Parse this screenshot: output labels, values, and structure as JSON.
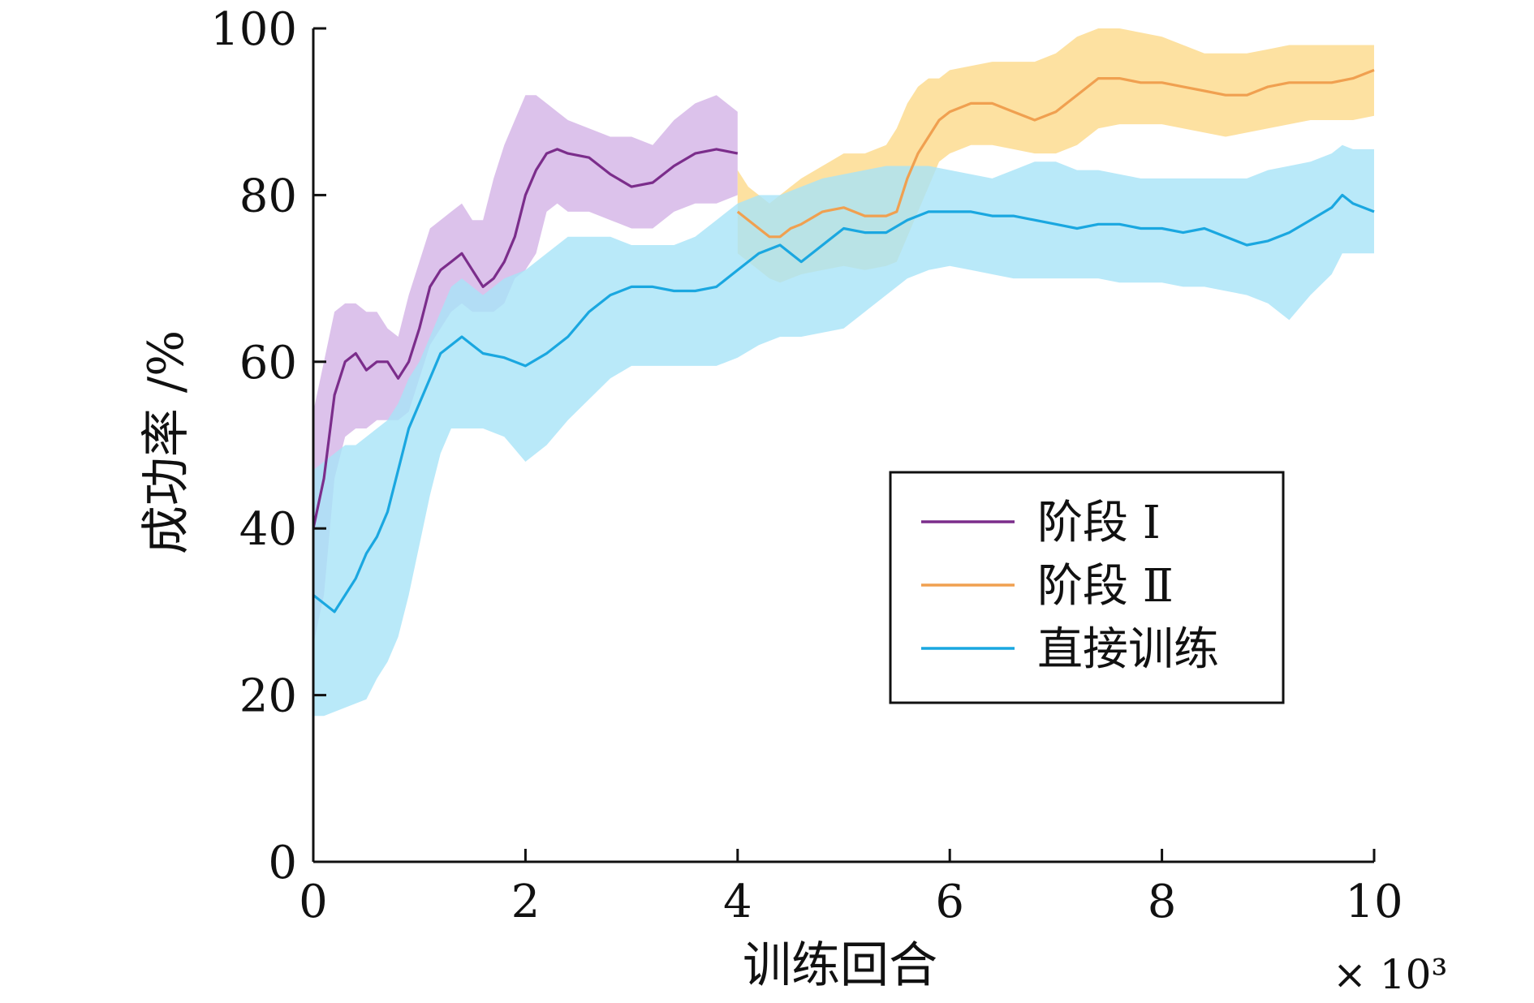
{
  "chart_data": {
    "type": "line",
    "title": "",
    "xlabel": "训练回合",
    "ylabel": "成功率 /%",
    "x_multiplier": "× 10³",
    "xlim": [
      0,
      10
    ],
    "ylim": [
      0,
      100
    ],
    "xticks": [
      0,
      2,
      4,
      6,
      8,
      10
    ],
    "yticks": [
      0,
      20,
      40,
      60,
      80,
      100
    ],
    "grid": false,
    "legend_position": "center-right",
    "series": [
      {
        "name": "阶段 Ⅰ",
        "color": "#7b2d8b",
        "band_color": "#d3b3e6",
        "x": [
          0,
          0.1,
          0.2,
          0.3,
          0.4,
          0.5,
          0.6,
          0.7,
          0.8,
          0.9,
          1.0,
          1.1,
          1.2,
          1.3,
          1.4,
          1.5,
          1.6,
          1.7,
          1.8,
          1.9,
          2.0,
          2.1,
          2.2,
          2.3,
          2.4,
          2.6,
          2.8,
          3.0,
          3.2,
          3.4,
          3.6,
          3.8,
          4.0
        ],
        "y": [
          40,
          46,
          56,
          60,
          61,
          59,
          60,
          60,
          58,
          60,
          64,
          69,
          71,
          72,
          73,
          71,
          69,
          70,
          72,
          75,
          80,
          83,
          85,
          85.5,
          85,
          84.5,
          82.5,
          81,
          81.5,
          83.5,
          85,
          85.5,
          85
        ],
        "upper": [
          54,
          60,
          66,
          67,
          67,
          66,
          66,
          64,
          63,
          68,
          72,
          76,
          77,
          78,
          79,
          77,
          77,
          82,
          86,
          89,
          92,
          92,
          91,
          90,
          89,
          88,
          87,
          87,
          86,
          89,
          91,
          92,
          90
        ],
        "lower": [
          26,
          32,
          46,
          51,
          52,
          52,
          53,
          53,
          53,
          54,
          58,
          62,
          64,
          66,
          67,
          66,
          66,
          66,
          67,
          70,
          71,
          73,
          78,
          79,
          78,
          78,
          77,
          76,
          76,
          78,
          79,
          79,
          80
        ]
      },
      {
        "name": "阶段 Ⅱ",
        "color": "#f0a050",
        "band_color": "#fdd98a",
        "x": [
          4.0,
          4.1,
          4.2,
          4.3,
          4.4,
          4.5,
          4.6,
          4.8,
          5.0,
          5.2,
          5.4,
          5.5,
          5.6,
          5.7,
          5.8,
          5.9,
          6.0,
          6.2,
          6.4,
          6.6,
          6.8,
          7.0,
          7.2,
          7.4,
          7.6,
          7.8,
          8.0,
          8.2,
          8.4,
          8.6,
          8.8,
          9.0,
          9.2,
          9.4,
          9.6,
          9.8,
          10.0
        ],
        "y": [
          78,
          77,
          76,
          75,
          75,
          76,
          76.5,
          78,
          78.5,
          77.5,
          77.5,
          78,
          82,
          85,
          87,
          89,
          90,
          91,
          91,
          90,
          89,
          90,
          92,
          94,
          94,
          93.5,
          93.5,
          93,
          92.5,
          92,
          92,
          93,
          93.5,
          93.5,
          93.5,
          94,
          95
        ],
        "upper": [
          83,
          81,
          80,
          79,
          80,
          81,
          82,
          83.5,
          85,
          85,
          86,
          88,
          91,
          93,
          94,
          94,
          95,
          95.5,
          96,
          96,
          96,
          97,
          99,
          100,
          100,
          99.5,
          99,
          98,
          97,
          97,
          97,
          97.5,
          98,
          98,
          98,
          98,
          98
        ],
        "lower": [
          73,
          72,
          71,
          70,
          69.5,
          70,
          70.5,
          71,
          71.5,
          71,
          71.5,
          72,
          75,
          78,
          81,
          84,
          85,
          86,
          86,
          85.5,
          85,
          85,
          86,
          88,
          88.5,
          88.5,
          88.5,
          88,
          87.5,
          87,
          87.5,
          88,
          88.5,
          89,
          89,
          89,
          89.5
        ]
      },
      {
        "name": "直接训练",
        "color": "#1aa7e0",
        "band_color": "#a7e3f7",
        "x": [
          0,
          0.1,
          0.2,
          0.3,
          0.4,
          0.5,
          0.6,
          0.7,
          0.8,
          0.9,
          1.0,
          1.1,
          1.2,
          1.3,
          1.4,
          1.5,
          1.6,
          1.8,
          2.0,
          2.2,
          2.4,
          2.6,
          2.8,
          3.0,
          3.2,
          3.4,
          3.6,
          3.8,
          4.0,
          4.2,
          4.4,
          4.6,
          4.8,
          5.0,
          5.2,
          5.4,
          5.6,
          5.8,
          6.0,
          6.2,
          6.4,
          6.6,
          6.8,
          7.0,
          7.2,
          7.4,
          7.6,
          7.8,
          8.0,
          8.2,
          8.4,
          8.6,
          8.8,
          9.0,
          9.2,
          9.4,
          9.6,
          9.7,
          9.8,
          10.0
        ],
        "y": [
          32,
          31,
          30,
          32,
          34,
          37,
          39,
          42,
          47,
          52,
          55,
          58,
          61,
          62,
          63,
          62,
          61,
          60.5,
          59.5,
          61,
          63,
          66,
          68,
          69,
          69,
          68.5,
          68.5,
          69,
          71,
          73,
          74,
          72,
          74,
          76,
          75.5,
          75.5,
          77,
          78,
          78,
          78,
          77.5,
          77.5,
          77,
          76.5,
          76,
          76.5,
          76.5,
          76,
          76,
          75.5,
          76,
          75,
          74,
          74.5,
          75.5,
          77,
          78.5,
          80,
          79,
          78
        ],
        "upper": [
          47,
          48,
          49,
          50,
          50,
          51,
          52,
          53,
          55,
          58,
          60,
          63,
          66,
          69,
          70,
          69,
          68,
          70,
          71,
          73,
          75,
          75,
          75,
          74,
          74,
          74,
          75,
          77,
          79,
          80,
          80,
          81,
          82,
          82.5,
          83,
          83.5,
          83.5,
          83.5,
          83,
          82.5,
          82,
          83,
          84,
          84,
          83,
          83,
          82.5,
          82,
          82,
          82,
          82,
          82,
          82,
          83,
          83.5,
          84,
          85,
          86,
          85.5,
          85.5
        ],
        "lower": [
          17.5,
          17.5,
          18,
          18.5,
          19,
          19.5,
          22,
          24,
          27,
          32,
          38,
          44,
          49,
          52,
          52,
          52,
          52,
          51,
          48,
          50,
          53,
          55.5,
          58,
          59.5,
          59.5,
          59.5,
          59.5,
          59.5,
          60.5,
          62,
          63,
          63,
          63.5,
          64,
          66,
          68,
          70,
          71,
          71.5,
          71,
          70.5,
          70,
          70,
          70,
          70,
          70,
          69.5,
          69.5,
          69.5,
          69,
          69,
          68.5,
          68,
          67,
          65,
          68,
          70.5,
          73,
          73,
          73
        ]
      }
    ]
  }
}
